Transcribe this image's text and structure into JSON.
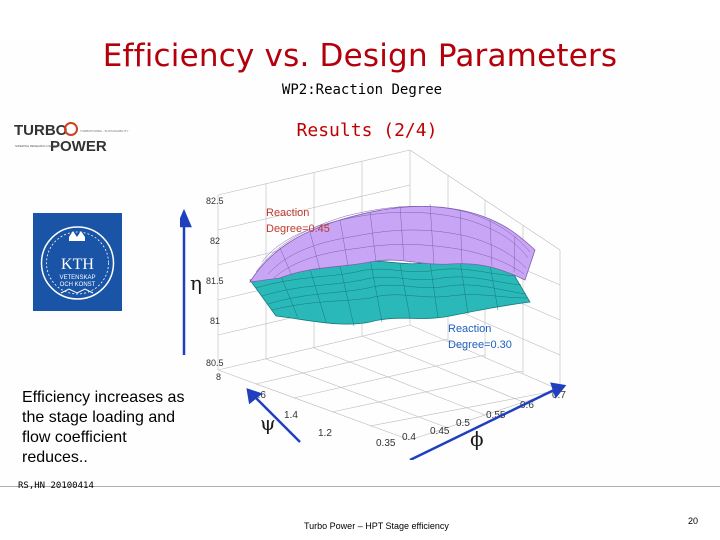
{
  "slide": {
    "title": "Efficiency vs. Design Parameters",
    "subtitle": "WP2:Reaction Degree",
    "section": "Results (2/4)",
    "caption": "Efficiency increases as the stage loading and flow coefficient reduces..",
    "footer_left": "RS,HN 20100414",
    "footer_center": "Turbo Power – HPT Stage efficiency",
    "page_number": "20"
  },
  "logos": {
    "turbopower": {
      "word_top": "TURBO",
      "word_bottom": "POWER",
      "tagline": "SWEDISH RESEARCH CENTER",
      "side_text": "TURBOPOWER - SUSTAINABILITY"
    },
    "kth": {
      "name": "KTH",
      "line1": "VETENSKAP",
      "line2": "OCH KONST"
    }
  },
  "colors": {
    "title": "#b3000a",
    "section": "#c00000",
    "surface_upper": "#c9a6f5",
    "surface_lower": "#2ab8b8",
    "arrow": "#1f3fbf",
    "kth_blue": "#1a54a6",
    "label_red": "#c0392b"
  },
  "plot": {
    "z_ticks": [
      "82.5",
      "82",
      "81.5",
      "81",
      "80.5",
      "8"
    ],
    "psi_ticks": [
      "1.6",
      "1.4",
      "1.2"
    ],
    "phi_ticks": [
      "0.7",
      "0.6",
      "0.55",
      "0.5",
      "0.45",
      "0.4",
      "0.35"
    ],
    "z_symbol": "η",
    "psi_symbol": "ψ",
    "phi_symbol": "ϕ",
    "label_upper_line1": "Reaction",
    "label_upper_line2": "Degree=0.45",
    "label_lower_line1": "Reaction",
    "label_lower_line2": "Degree=0.30"
  }
}
